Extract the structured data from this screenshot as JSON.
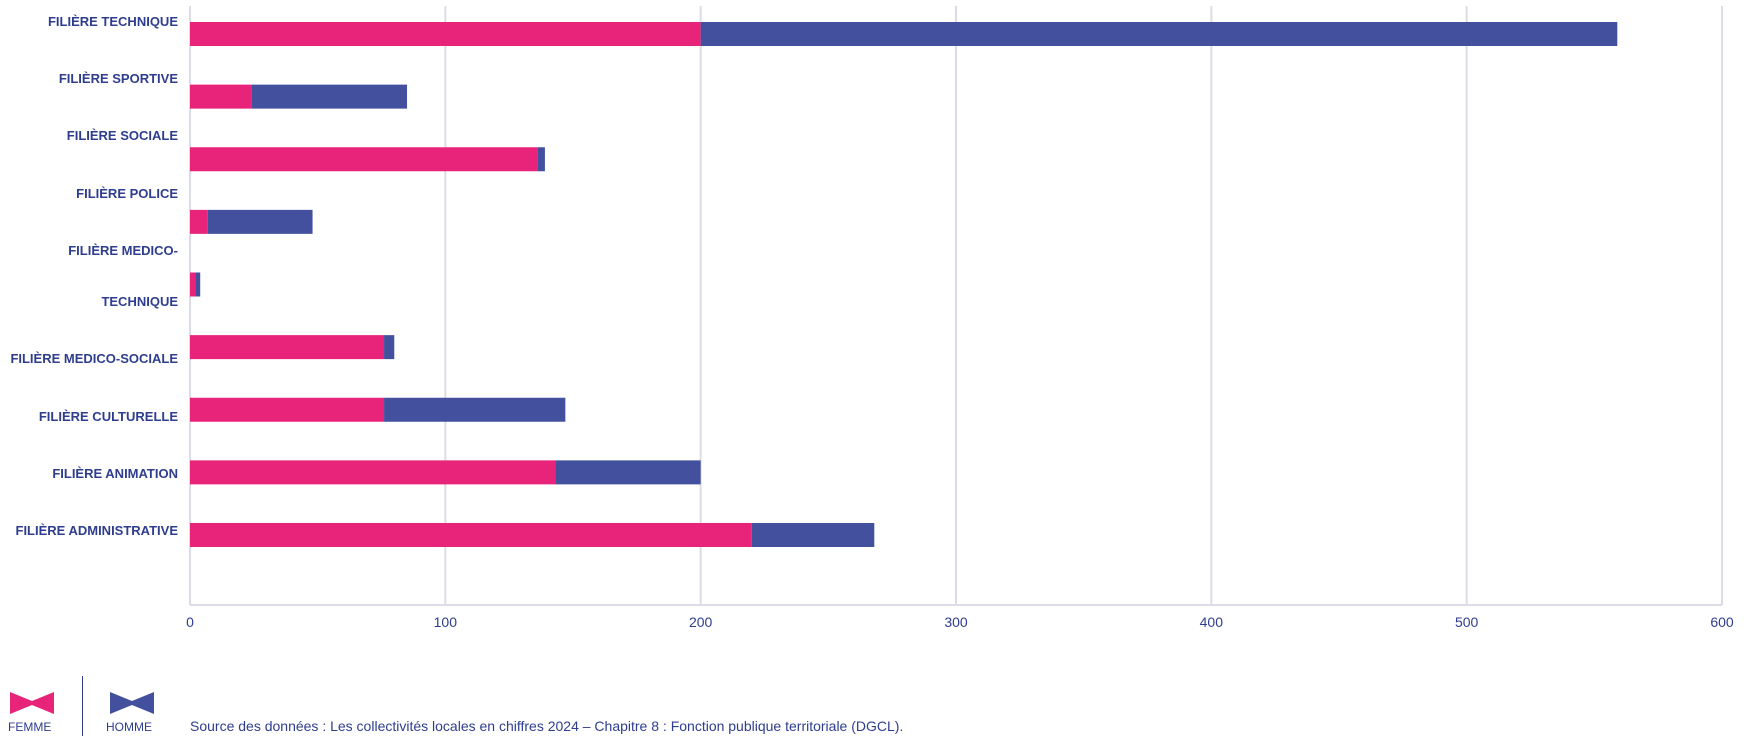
{
  "chart_data": {
    "type": "bar",
    "orientation": "horizontal",
    "stacked": true,
    "categories": [
      "FILIÈRE TECHNIQUE",
      "FILIÈRE SPORTIVE",
      "FILIÈRE  SOCIALE",
      "FILIÈRE POLICE",
      "FILIÈRE MEDICO-TECHNIQUE",
      "FILIÈRE MEDICO-SOCIALE",
      "FILIÈRE CULTURELLE",
      "FILIÈRE ANIMATION",
      "FILIÈRE ADMINISTRATIVE"
    ],
    "category_label_lines": [
      [
        "FILIÈRE TECHNIQUE"
      ],
      [
        "FILIÈRE SPORTIVE"
      ],
      [
        "FILIÈRE  SOCIALE"
      ],
      [
        "FILIÈRE POLICE"
      ],
      [
        "FILIÈRE MEDICO-",
        "TECHNIQUE"
      ],
      [
        "FILIÈRE MEDICO-SOCIALE"
      ],
      [
        "FILIÈRE CULTURELLE"
      ],
      [
        "FILIÈRE ANIMATION"
      ],
      [
        "FILIÈRE ADMINISTRATIVE"
      ]
    ],
    "series": [
      {
        "name": "FEMME",
        "color": "#e8247a",
        "values": [
          200,
          24,
          136,
          7,
          2,
          76,
          76,
          143,
          220
        ]
      },
      {
        "name": "HOMME",
        "color": "#43509e",
        "values": [
          359,
          61,
          3,
          41,
          2,
          4,
          71,
          57,
          48
        ]
      }
    ],
    "xlim": [
      0,
      600
    ],
    "xticks": [
      0,
      100,
      200,
      300,
      400,
      500,
      600
    ],
    "grid": true,
    "legend_position": "bottom-left"
  },
  "legend": {
    "femme_label": "FEMME",
    "homme_label": "HOMME"
  },
  "source_text": "Source des données : Les collectivités locales en chiffres 2024 – Chapitre 8 : Fonction publique territoriale (DGCL)."
}
